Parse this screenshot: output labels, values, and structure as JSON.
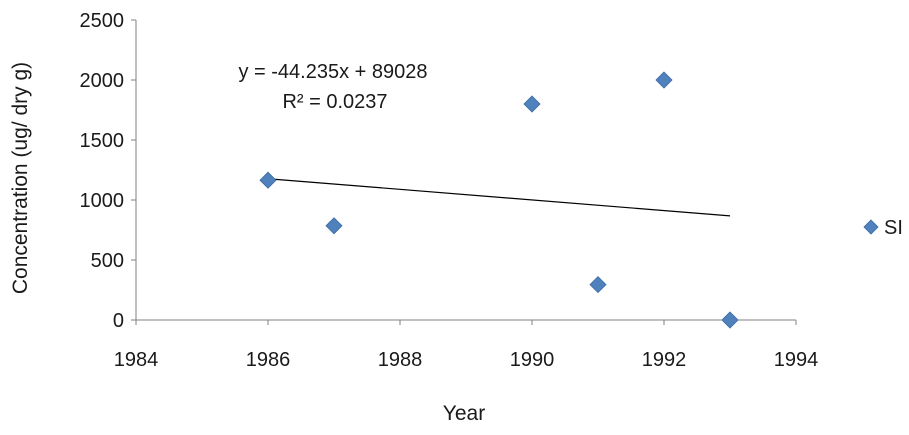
{
  "chart_data": {
    "type": "scatter",
    "xlabel": "Year",
    "ylabel": "Concentration (ug/ dry g)",
    "xlim": [
      1984,
      1994
    ],
    "ylim": [
      0,
      2500
    ],
    "xticks": [
      1984,
      1986,
      1988,
      1990,
      1992,
      1994
    ],
    "yticks": [
      0,
      500,
      1000,
      1500,
      2000,
      2500
    ],
    "grid": false,
    "legend_position": "right",
    "series": [
      {
        "name": "SI",
        "color": "#4f81bd",
        "marker": "diamond",
        "points": [
          {
            "x": 1986,
            "y": 1165
          },
          {
            "x": 1987,
            "y": 785
          },
          {
            "x": 1990,
            "y": 1800
          },
          {
            "x": 1991,
            "y": 295
          },
          {
            "x": 1992,
            "y": 2000
          },
          {
            "x": 1993,
            "y": 0
          }
        ]
      }
    ],
    "trendline": {
      "type": "linear",
      "slope": -44.235,
      "intercept": 89028,
      "x_range": [
        1986,
        1993
      ],
      "equation_text": "y = -44.235x + 89028",
      "r2_text": "R² = 0.0237"
    }
  }
}
